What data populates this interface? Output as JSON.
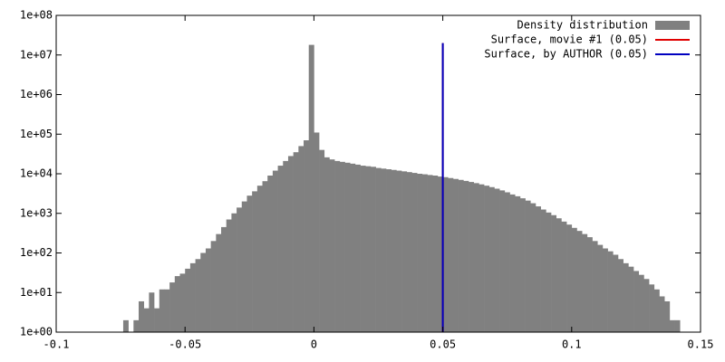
{
  "chart_data": {
    "type": "histogram",
    "bins": [
      -0.074,
      -0.072,
      -0.07,
      -0.068,
      -0.066,
      -0.064,
      -0.062,
      -0.06,
      -0.058,
      -0.056,
      -0.054,
      -0.052,
      -0.05,
      -0.048,
      -0.046,
      -0.044,
      -0.042,
      -0.04,
      -0.038,
      -0.036,
      -0.034,
      -0.032,
      -0.03,
      -0.028,
      -0.026,
      -0.024,
      -0.022,
      -0.02,
      -0.018,
      -0.016,
      -0.014,
      -0.012,
      -0.01,
      -0.008,
      -0.006,
      -0.004,
      -0.002,
      0,
      0.002,
      0.004,
      0.006,
      0.008,
      0.01,
      0.012,
      0.014,
      0.016,
      0.018,
      0.02,
      0.022,
      0.024,
      0.026,
      0.028,
      0.03,
      0.032,
      0.034,
      0.036,
      0.038,
      0.04,
      0.042,
      0.044,
      0.046,
      0.048,
      0.05,
      0.052,
      0.054,
      0.056,
      0.058,
      0.06,
      0.062,
      0.064,
      0.066,
      0.068,
      0.07,
      0.072,
      0.074,
      0.076,
      0.078,
      0.08,
      0.082,
      0.084,
      0.086,
      0.088,
      0.09,
      0.092,
      0.094,
      0.096,
      0.098,
      0.1,
      0.102,
      0.104,
      0.106,
      0.108,
      0.11,
      0.112,
      0.114,
      0.116,
      0.118,
      0.12,
      0.122,
      0.124,
      0.126,
      0.128,
      0.13,
      0.132,
      0.134,
      0.136,
      0.138,
      0.14,
      0.142
    ],
    "series": [
      {
        "name": "Density distribution",
        "color": "#808080",
        "values": [
          2,
          1,
          2,
          6,
          4,
          10,
          4,
          12,
          12,
          18,
          26,
          30,
          40,
          55,
          70,
          100,
          130,
          200,
          300,
          450,
          700,
          1000,
          1400,
          2000,
          2800,
          3600,
          5000,
          6500,
          9000,
          12000,
          16000,
          21000,
          28000,
          35000,
          50000,
          70000,
          18000000,
          110000,
          40000,
          26000,
          23000,
          21000,
          20000,
          19000,
          18000,
          17000,
          16000,
          15500,
          15000,
          14000,
          13500,
          13000,
          12500,
          12000,
          11500,
          11000,
          10500,
          10000,
          9700,
          9300,
          9000,
          8500,
          8200,
          7800,
          7400,
          7000,
          6600,
          6200,
          5800,
          5400,
          5000,
          4600,
          4200,
          3800,
          3400,
          3000,
          2700,
          2400,
          2100,
          1800,
          1500,
          1250,
          1050,
          900,
          750,
          620,
          520,
          430,
          360,
          300,
          250,
          200,
          160,
          130,
          110,
          90,
          70,
          55,
          45,
          35,
          28,
          22,
          16,
          12,
          8,
          6,
          2,
          2
        ]
      }
    ],
    "lines": [
      {
        "name": "Surface, movie #1 (0.05)",
        "color": "#e00000",
        "x": [
          0.05,
          0.05
        ],
        "values": [
          1,
          20000000
        ]
      },
      {
        "name": "Surface, by AUTHOR (0.05)",
        "color": "#0000c0",
        "x": [
          0.05,
          0.05
        ],
        "values": [
          1,
          20000000
        ]
      }
    ],
    "xlim": [
      -0.1,
      0.15
    ],
    "ylim": [
      1,
      100000000
    ],
    "log_y": true,
    "legend": "top-right",
    "xticks": [
      -0.1,
      -0.05,
      0,
      0.05,
      0.1,
      0.15
    ],
    "yticks": [
      {
        "value": 1,
        "label": "1e+00"
      },
      {
        "value": 10,
        "label": "1e+01"
      },
      {
        "value": 100,
        "label": "1e+02"
      },
      {
        "value": 1000,
        "label": "1e+03"
      },
      {
        "value": 10000,
        "label": "1e+04"
      },
      {
        "value": 100000,
        "label": "1e+05"
      },
      {
        "value": 1000000,
        "label": "1e+06"
      },
      {
        "value": 10000000,
        "label": "1e+07"
      },
      {
        "value": 100000000,
        "label": "1e+08"
      }
    ]
  }
}
